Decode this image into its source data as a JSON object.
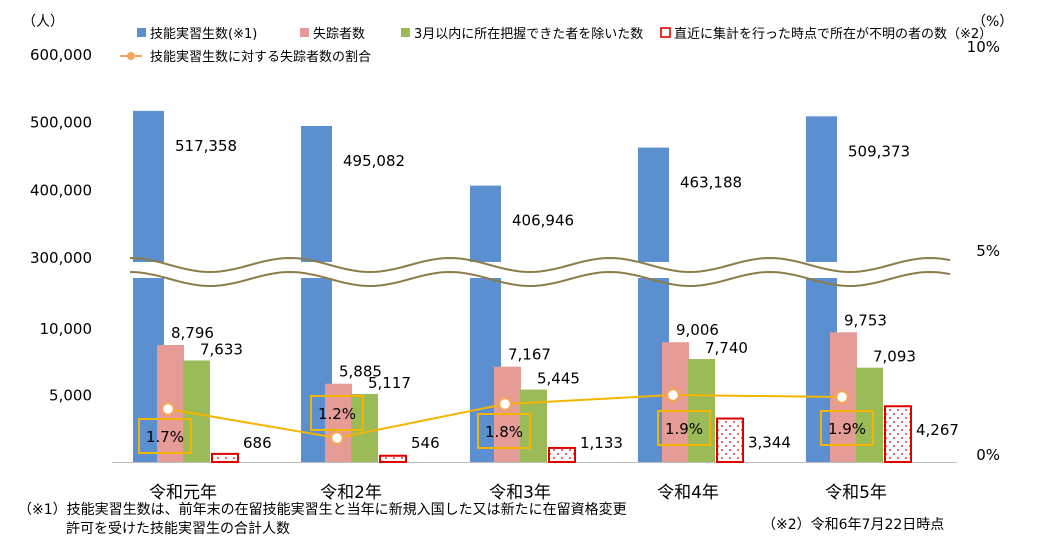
{
  "chart_data": {
    "type": "bar",
    "units": {
      "left": "（人）",
      "right": "（%）"
    },
    "categories": [
      "令和元年",
      "令和2年",
      "令和3年",
      "令和4年",
      "令和5年"
    ],
    "series": [
      {
        "name": "技能実習生数(※1)",
        "kind": "bar",
        "color": "#5b8fd0",
        "values": [
          517358,
          495082,
          406946,
          463188,
          509373
        ],
        "labels": [
          "517,358",
          "495,082",
          "406,946",
          "463,188",
          "509,373"
        ]
      },
      {
        "name": "失踪者数",
        "kind": "bar",
        "color": "#e59b96",
        "values": [
          8796,
          5885,
          7167,
          9006,
          9753
        ],
        "labels": [
          "8,796",
          "5,885",
          "7,167",
          "9,006",
          "9,753"
        ]
      },
      {
        "name": "3月以内に所在把握できた者を除いた数",
        "kind": "bar",
        "color": "#9bbb59",
        "values": [
          7633,
          5117,
          5445,
          7740,
          7093
        ],
        "labels": [
          "7,633",
          "5,117",
          "5,445",
          "7,740",
          "7,093"
        ]
      },
      {
        "name": "直近に集計を行った時点で所在が不明の者の数（※2）",
        "kind": "bar",
        "color": "#e00000",
        "pattern": "dots",
        "values": [
          686,
          546,
          1133,
          3344,
          4267
        ],
        "labels": [
          "686",
          "546",
          "1,133",
          "3,344",
          "4,267"
        ]
      },
      {
        "name": "技能実習生数に対する失踪者数の割合",
        "kind": "line",
        "axis": "right",
        "color": "#f5b400",
        "marker_color": "#f4a460",
        "values": [
          1.7,
          1.2,
          1.8,
          1.9,
          1.9
        ],
        "labels": [
          "1.7%",
          "1.2%",
          "1.8%",
          "1.9%",
          "1.9%"
        ]
      }
    ],
    "y_left_ticks": [
      "600,000",
      "500,000",
      "400,000",
      "300,000",
      "10,000",
      "5,000"
    ],
    "y_left_scale": "broken",
    "y_left_lower_range": [
      0,
      10000
    ],
    "y_left_upper_range": [
      300000,
      600000
    ],
    "y_right_ticks": [
      "10%",
      "5%",
      "0%"
    ],
    "y_right_range": [
      0,
      10
    ],
    "legend_position": "top",
    "axis_break": true
  },
  "footnotes": {
    "note1_line1": "（※1）技能実習生数は、前年末の在留技能実習生と当年に新規入国した又は新たに在留資格変更",
    "note1_line2": "許可を受けた技能実習生の合計人数",
    "note2": "（※2）令和6年7月22日時点"
  }
}
